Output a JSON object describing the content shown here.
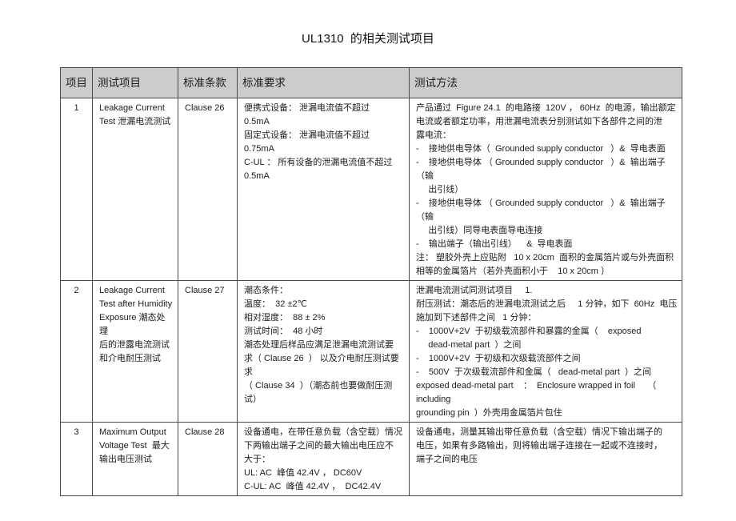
{
  "page": {
    "title": "UL1310  的相关测试项目"
  },
  "table": {
    "headers": [
      "项目",
      "测试项目",
      "标准条款",
      "标准要求",
      "测试方法"
    ],
    "rows": [
      {
        "item": "1",
        "test_item": [
          "Leakage Current",
          "Test 泄漏电流测试"
        ],
        "clause": "Clause 26",
        "requirement": [
          "便携式设备： 泄漏电流值不超过    0.5mA",
          "固定式设备： 泄漏电流值不超过   0.75mA",
          "C-UL ： 所有设备的泄漏电流值不超过",
          "0.5mA"
        ],
        "method": [
          "产品通过  Figure 24.1  的电路接  120V ， 60Hz  的电源，输出额定",
          "电流或者额定功率，用泄漏电流表分别测试如下各部件之间的泄",
          "露电流：",
          "-    接地供电导体（  Grounded supply conductor   ）&  导电表面",
          "-    接地供电导体 （ Grounded supply conductor   ）&  输出端子（输",
          "     出引线）",
          "-    接地供电导体 （ Grounded supply conductor   ）&  输出端子（输",
          "     出引线）同导电表面导电连接",
          "-    输出端子（输出引线）    &  导电表面",
          "注： 塑胶外壳上应贴附   10 x 20cm  面积的金属箔片或与外壳面积",
          "相等的金属箔片（若外壳面积小于    10 x 20cm ）"
        ]
      },
      {
        "item": "2",
        "test_item": [
          "Leakage Current",
          "Test after Humidity",
          "Exposure 潮态处理",
          "后的泄露电流测试",
          "和介电耐压测试"
        ],
        "clause": "Clause 27",
        "requirement": [
          "潮态条件：",
          "温度：  32 ±2℃",
          "相对湿度：  88 ± 2%",
          "测试时间：  48 小时",
          "潮态处理后样品应满足泄漏电流测试要",
          "求（ Clause 26  ） 以及介电耐压测试要求",
          "（ Clause 34  ）（潮态前也要做耐压测试）"
        ],
        "method": [
          "泄漏电流测试同测试项目     1.",
          "耐压测试：潮态后的泄漏电流测试之后     1 分钟，如下  60Hz  电压",
          "施加到下述部件之间   1 分钟：",
          "-    1000V+2V  于初级载流部件和暴露的金属（    exposed",
          "     dead-metal part  ）之间",
          "-    1000V+2V  于初级和次级载流部件之间",
          "-    500V  于次级载流部件和金属（   dead-metal part  ）之间",
          "exposed dead-metal part    ：  Enclosure wrapped in foil     （ including",
          "grounding pin  ）外壳用金属箔片包住"
        ]
      },
      {
        "item": "3",
        "test_item": [
          "Maximum Output",
          "Voltage Test  最大",
          "输出电压测试"
        ],
        "clause": "Clause 28",
        "requirement": [
          "设备通电，在带任意负载（含空载）情况",
          "下两输出端子之间的最大输出电压应不",
          "大于：",
          "UL: AC  峰值 42.4V ， DC60V",
          "C-UL: AC  峰值 42.4V ，  DC42.4V"
        ],
        "method": [
          "设备通电，测量其输出带任意负载（含空载）情况下输出端子的",
          "电压，如果有多路输出，则将输出端子连接在一起或不连接时，",
          "端子之间的电压"
        ]
      }
    ]
  }
}
